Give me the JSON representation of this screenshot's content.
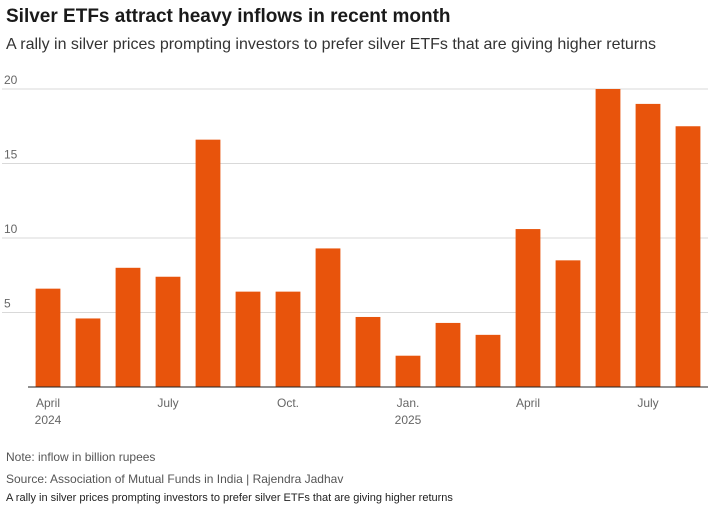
{
  "header": {
    "title": "Silver ETFs attract heavy inflows in recent month",
    "subtitle": "A rally in silver prices prompting investors to prefer silver ETFs that are giving higher returns"
  },
  "footer": {
    "note": "Note: inflow in billion rupees",
    "source": "Source: Association of Mutual Funds in India  | Rajendra Jadhav",
    "caption": "A rally in silver prices prompting investors to prefer silver ETFs that are giving higher returns"
  },
  "chart_data": {
    "type": "bar",
    "title": "Silver ETFs attract heavy inflows in recent month",
    "subtitle": "A rally in silver prices prompting investors to prefer silver ETFs that are giving higher returns",
    "categories": [
      "Apr 2024",
      "May 2024",
      "Jun 2024",
      "Jul 2024",
      "Aug 2024",
      "Sep 2024",
      "Oct 2024",
      "Nov 2024",
      "Dec 2024",
      "Jan 2025",
      "Feb 2025",
      "Mar 2025",
      "Apr 2025",
      "May 2025",
      "Jun 2025",
      "Jul 2025",
      "Aug 2025"
    ],
    "values": [
      6.6,
      4.6,
      8.0,
      7.4,
      16.6,
      6.4,
      6.4,
      9.3,
      4.7,
      2.1,
      4.3,
      3.5,
      10.6,
      8.5,
      20.0,
      19.0,
      17.5
    ],
    "xlabel": "",
    "ylabel": "",
    "ylim": [
      0,
      20
    ],
    "yticks": [
      5,
      10,
      15,
      20
    ],
    "xtick_labels": [
      {
        "index": 0,
        "line1": "April",
        "line2": "2024"
      },
      {
        "index": 3,
        "line1": "July",
        "line2": ""
      },
      {
        "index": 6,
        "line1": "Oct.",
        "line2": ""
      },
      {
        "index": 9,
        "line1": "Jan.",
        "line2": "2025"
      },
      {
        "index": 12,
        "line1": "April",
        "line2": ""
      },
      {
        "index": 15,
        "line1": "July",
        "line2": ""
      }
    ],
    "grid": true,
    "bar_color": "#e8540c",
    "grid_color": "#d9d9d9",
    "axis_color": "#222222"
  }
}
